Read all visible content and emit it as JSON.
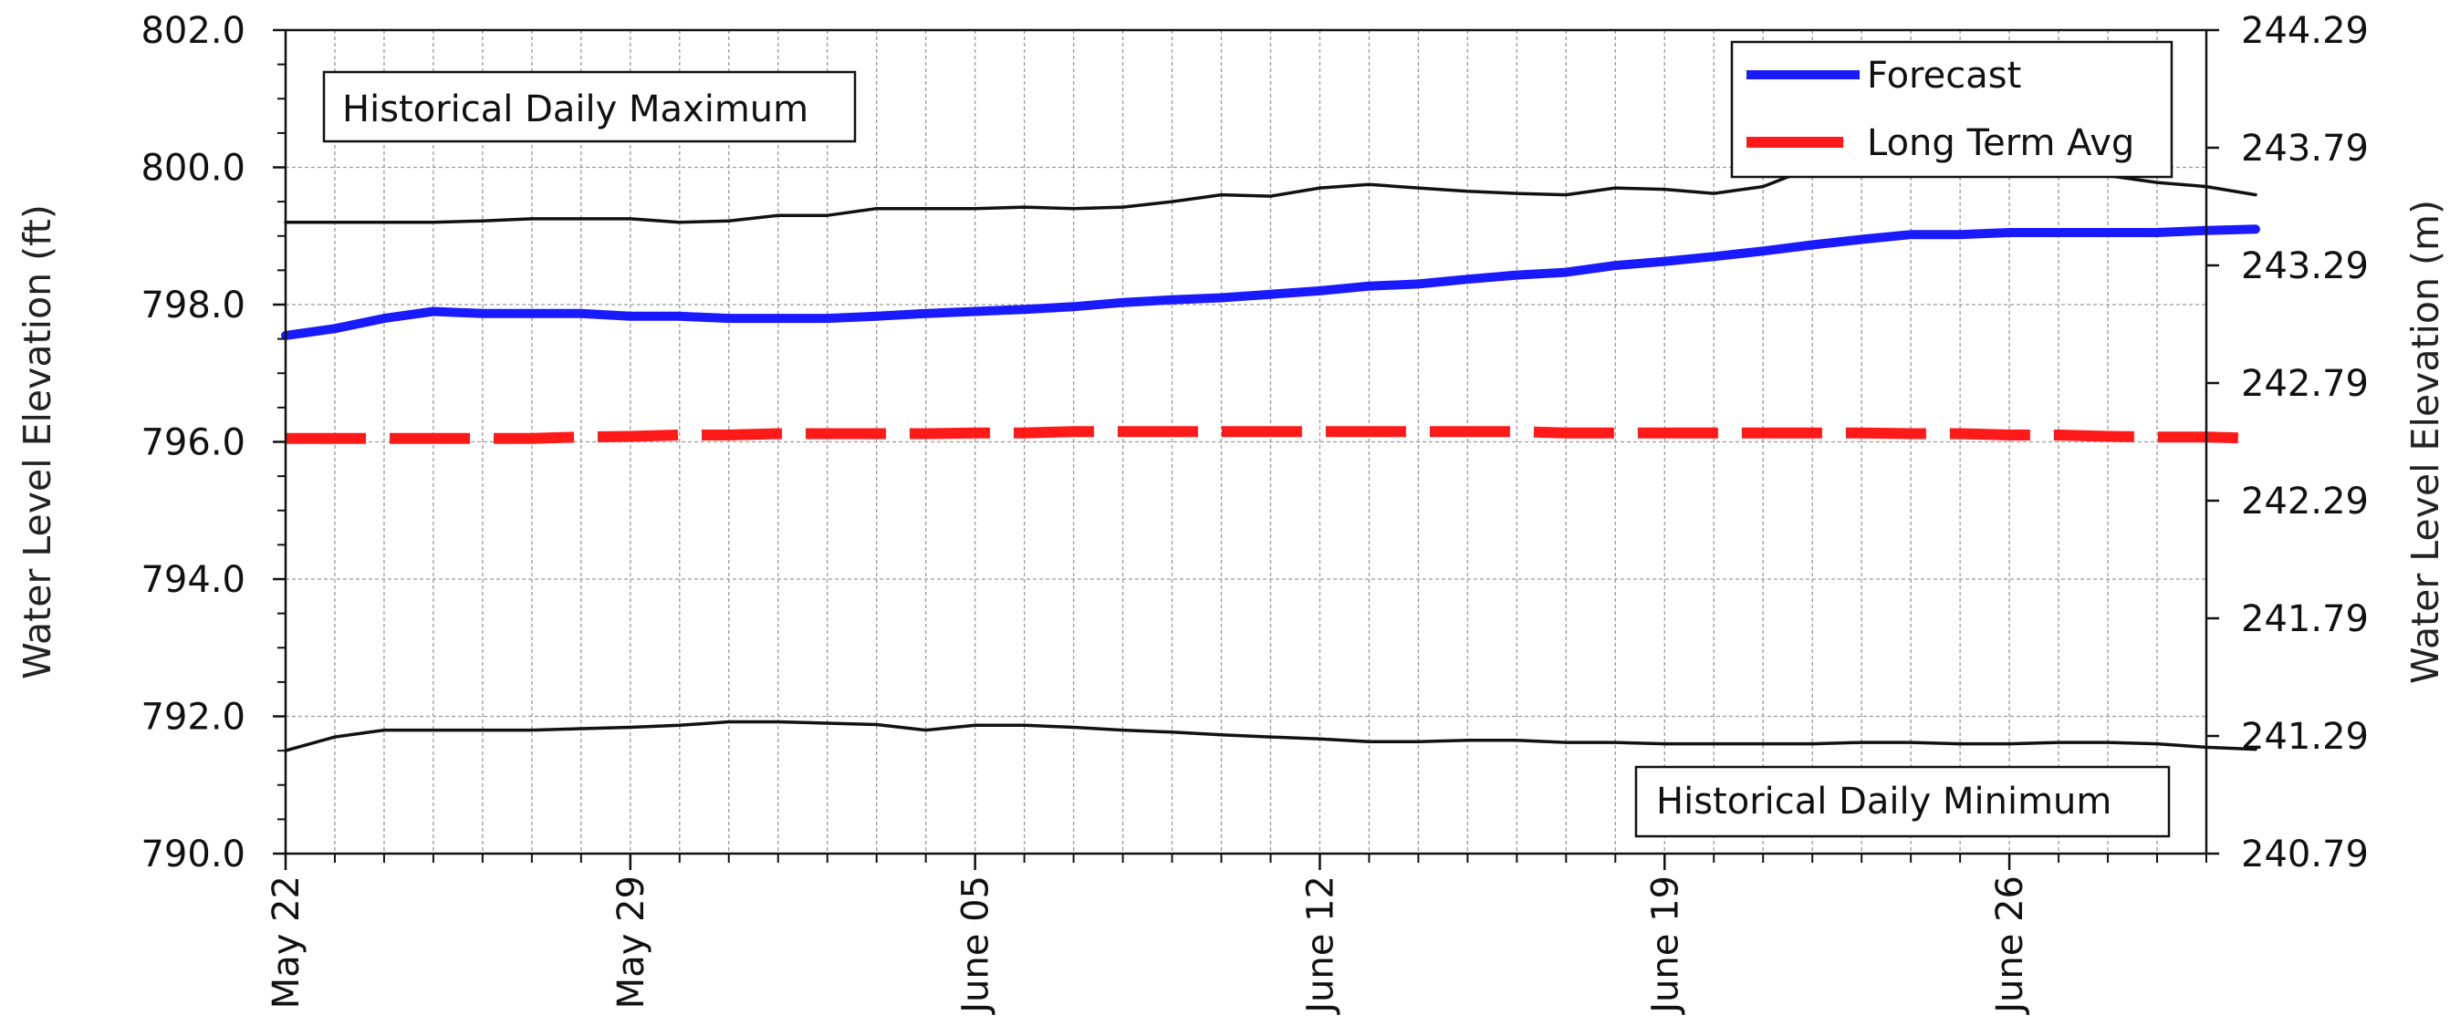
{
  "chart_data": {
    "type": "line",
    "title": "",
    "ylabel": "Water Level Elevation (ft)",
    "ylabel_right": "Water Level Elevation (m)",
    "ylim": [
      790.0,
      802.0
    ],
    "ylim_right": [
      240.79,
      244.29
    ],
    "y_ticks": [
      "790.0",
      "792.0",
      "794.0",
      "796.0",
      "798.0",
      "800.0",
      "802.0"
    ],
    "y_ticks_right": [
      "240.79",
      "241.29",
      "241.79",
      "242.29",
      "242.79",
      "243.29",
      "243.79",
      "244.29"
    ],
    "x_ticks": [
      {
        "day": 0,
        "label": "May 22"
      },
      {
        "day": 7,
        "label": "May 29"
      },
      {
        "day": 14,
        "label": "June 05"
      },
      {
        "day": 21,
        "label": "June 12"
      },
      {
        "day": 28,
        "label": "June 19"
      },
      {
        "day": 35,
        "label": "June 26"
      }
    ],
    "xlim_days": [
      0,
      39
    ],
    "grid": true,
    "legend_position": "top-right",
    "annotations": {
      "max_label": "Historical Daily Maximum",
      "min_label": "Historical Daily Minimum"
    },
    "series": [
      {
        "name": "Forecast",
        "color": "#1a1aff",
        "style": "solid",
        "values": [
          797.55,
          797.65,
          797.8,
          797.9,
          797.87,
          797.87,
          797.87,
          797.83,
          797.83,
          797.8,
          797.8,
          797.8,
          797.83,
          797.87,
          797.9,
          797.93,
          797.97,
          798.03,
          798.07,
          798.1,
          798.15,
          798.2,
          798.27,
          798.3,
          798.37,
          798.43,
          798.47,
          798.57,
          798.63,
          798.7,
          798.78,
          798.87,
          798.95,
          799.02,
          799.02,
          799.05,
          799.05,
          799.05,
          799.05,
          799.08,
          799.1
        ]
      },
      {
        "name": "Long Term Avg",
        "color": "#ff1a1a",
        "style": "dashed",
        "values": [
          796.05,
          796.05,
          796.05,
          796.05,
          796.05,
          796.05,
          796.07,
          796.08,
          796.1,
          796.1,
          796.12,
          796.12,
          796.12,
          796.12,
          796.13,
          796.13,
          796.15,
          796.15,
          796.15,
          796.15,
          796.15,
          796.15,
          796.15,
          796.15,
          796.15,
          796.15,
          796.13,
          796.13,
          796.13,
          796.13,
          796.13,
          796.13,
          796.13,
          796.12,
          796.12,
          796.1,
          796.1,
          796.08,
          796.07,
          796.07,
          796.05
        ]
      },
      {
        "name": "Historical Daily Maximum",
        "color": "#111111",
        "style": "thin",
        "values": [
          799.2,
          799.2,
          799.2,
          799.2,
          799.22,
          799.25,
          799.25,
          799.25,
          799.2,
          799.22,
          799.3,
          799.3,
          799.4,
          799.4,
          799.4,
          799.42,
          799.4,
          799.42,
          799.5,
          799.6,
          799.58,
          799.7,
          799.75,
          799.7,
          799.65,
          799.62,
          799.6,
          799.7,
          799.68,
          799.62,
          799.72,
          800.0,
          800.0,
          799.98,
          799.95,
          799.95,
          799.95,
          799.88,
          799.78,
          799.72,
          799.6
        ]
      },
      {
        "name": "Historical Daily Minimum",
        "color": "#111111",
        "style": "thin",
        "values": [
          791.5,
          791.7,
          791.8,
          791.8,
          791.8,
          791.8,
          791.82,
          791.84,
          791.87,
          791.92,
          791.92,
          791.9,
          791.88,
          791.8,
          791.87,
          791.87,
          791.84,
          791.8,
          791.77,
          791.73,
          791.7,
          791.67,
          791.63,
          791.63,
          791.65,
          791.65,
          791.62,
          791.62,
          791.6,
          791.6,
          791.6,
          791.6,
          791.62,
          791.62,
          791.6,
          791.6,
          791.62,
          791.62,
          791.6,
          791.55,
          791.52
        ]
      }
    ]
  }
}
